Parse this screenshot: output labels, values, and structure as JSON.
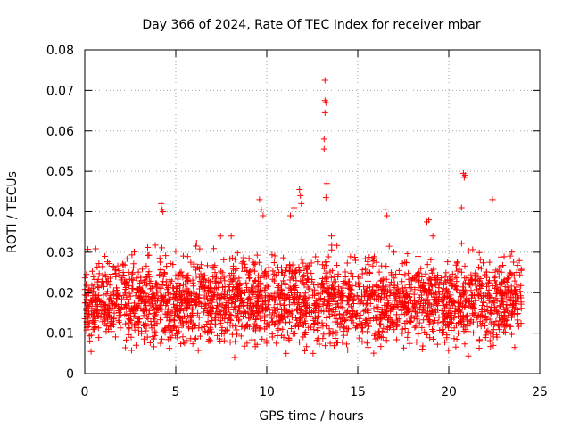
{
  "chart_data": {
    "type": "scatter",
    "title": "Day 366 of 2024, Rate Of TEC Index for receiver mbar",
    "xlabel": "GPS time / hours",
    "ylabel": "ROTI / TECUs",
    "xlim": [
      0,
      25
    ],
    "ylim": [
      0,
      0.08
    ],
    "x_ticks": [
      0,
      5,
      10,
      15,
      20,
      25
    ],
    "x_tick_labels": [
      "0",
      "5",
      "10",
      "15",
      "20",
      "25"
    ],
    "y_ticks": [
      0,
      0.01,
      0.02,
      0.03,
      0.04,
      0.05,
      0.06,
      0.07,
      0.08
    ],
    "y_tick_labels": [
      "0",
      "0.01",
      "0.02",
      "0.03",
      "0.04",
      "0.05",
      "0.06",
      "0.07",
      "0.08"
    ],
    "grid": true,
    "marker": "+",
    "series": [
      {
        "name": "ROTI",
        "color": "#ff0000",
        "bulk_range": [
          0.003,
          0.026
        ],
        "bulk_x_range": [
          0,
          24
        ],
        "points": [
          {
            "x": 4.2,
            "y": 0.042
          },
          {
            "x": 4.25,
            "y": 0.0405
          },
          {
            "x": 4.3,
            "y": 0.04
          },
          {
            "x": 9.6,
            "y": 0.043
          },
          {
            "x": 9.7,
            "y": 0.0405
          },
          {
            "x": 9.8,
            "y": 0.039
          },
          {
            "x": 11.8,
            "y": 0.0455
          },
          {
            "x": 11.85,
            "y": 0.044
          },
          {
            "x": 11.9,
            "y": 0.042
          },
          {
            "x": 11.3,
            "y": 0.039
          },
          {
            "x": 11.5,
            "y": 0.041
          },
          {
            "x": 13.2,
            "y": 0.0725
          },
          {
            "x": 13.2,
            "y": 0.0675
          },
          {
            "x": 13.25,
            "y": 0.067
          },
          {
            "x": 13.2,
            "y": 0.0645
          },
          {
            "x": 13.15,
            "y": 0.058
          },
          {
            "x": 13.15,
            "y": 0.0555
          },
          {
            "x": 13.3,
            "y": 0.047
          },
          {
            "x": 13.25,
            "y": 0.0435
          },
          {
            "x": 16.5,
            "y": 0.0405
          },
          {
            "x": 16.6,
            "y": 0.039
          },
          {
            "x": 18.9,
            "y": 0.038
          },
          {
            "x": 18.8,
            "y": 0.0375
          },
          {
            "x": 20.8,
            "y": 0.0495
          },
          {
            "x": 20.85,
            "y": 0.0485
          },
          {
            "x": 20.9,
            "y": 0.049
          },
          {
            "x": 20.7,
            "y": 0.041
          },
          {
            "x": 22.4,
            "y": 0.043
          }
        ]
      }
    ]
  }
}
